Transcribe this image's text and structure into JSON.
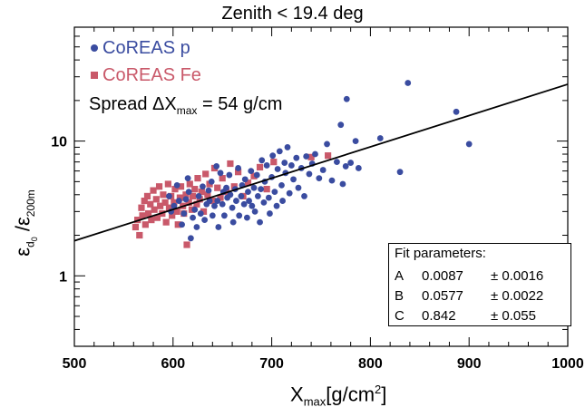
{
  "chart_data": {
    "type": "scatter",
    "title": "Zenith < 19.4 deg",
    "xlabel": {
      "main": "X",
      "sub": "max",
      "unit": "[g/cm",
      "sup": "2",
      "close": "]"
    },
    "ylabel": {
      "eps1": "ε",
      "sub1": "d",
      "subsub1": "0",
      "slash": " /",
      "eps2": "ε",
      "sub2": "200m"
    },
    "xlim": [
      500,
      1000
    ],
    "ylim": [
      0.3,
      70
    ],
    "yscale": "log",
    "xticks": [
      "500",
      "600",
      "700",
      "800",
      "900",
      "1000"
    ],
    "xtick_values": [
      500,
      600,
      700,
      800,
      900,
      1000
    ],
    "yticks": [
      "1",
      "10"
    ],
    "ytick_values": [
      1,
      10
    ],
    "legend_placement": "top-left",
    "series": [
      {
        "name": "CoREAS p",
        "color": "#3a4ca0",
        "marker": "circle",
        "points": [
          [
            596,
            3.9
          ],
          [
            598,
            3.0
          ],
          [
            601,
            3.3
          ],
          [
            604,
            4.7
          ],
          [
            606,
            3.6
          ],
          [
            609,
            2.4
          ],
          [
            611,
            2.9
          ],
          [
            613,
            3.7
          ],
          [
            615,
            5.3
          ],
          [
            616,
            4.2
          ],
          [
            618,
            1.9
          ],
          [
            620,
            2.7
          ],
          [
            622,
            3.1
          ],
          [
            624,
            2.3
          ],
          [
            626,
            3.9
          ],
          [
            628,
            2.9
          ],
          [
            630,
            4.6
          ],
          [
            632,
            2.6
          ],
          [
            634,
            3.4
          ],
          [
            636,
            4.3
          ],
          [
            637,
            3.6
          ],
          [
            639,
            5.0
          ],
          [
            640,
            2.8
          ],
          [
            642,
            3.3
          ],
          [
            644,
            6.5
          ],
          [
            645,
            3.6
          ],
          [
            646,
            2.3
          ],
          [
            648,
            5.8
          ],
          [
            650,
            3.4
          ],
          [
            651,
            4.2
          ],
          [
            652,
            2.8
          ],
          [
            654,
            4.5
          ],
          [
            655,
            3.8
          ],
          [
            657,
            5.6
          ],
          [
            658,
            4.0
          ],
          [
            660,
            3.2
          ],
          [
            661,
            2.5
          ],
          [
            663,
            4.4
          ],
          [
            664,
            3.6
          ],
          [
            666,
            6.3
          ],
          [
            667,
            2.8
          ],
          [
            669,
            3.9
          ],
          [
            670,
            4.7
          ],
          [
            672,
            3.4
          ],
          [
            673,
            5.2
          ],
          [
            675,
            2.7
          ],
          [
            676,
            4.2
          ],
          [
            677,
            3.6
          ],
          [
            679,
            6.0
          ],
          [
            680,
            3.3
          ],
          [
            682,
            4.5
          ],
          [
            683,
            3.0
          ],
          [
            685,
            5.6
          ],
          [
            686,
            3.9
          ],
          [
            688,
            2.5
          ],
          [
            689,
            4.4
          ],
          [
            690,
            7.2
          ],
          [
            692,
            3.5
          ],
          [
            693,
            5.0
          ],
          [
            695,
            6.6
          ],
          [
            697,
            3.8
          ],
          [
            698,
            2.9
          ],
          [
            700,
            5.4
          ],
          [
            701,
            7.8
          ],
          [
            703,
            4.2
          ],
          [
            705,
            3.3
          ],
          [
            706,
            6.2
          ],
          [
            708,
            8.4
          ],
          [
            710,
            4.7
          ],
          [
            711,
            3.6
          ],
          [
            713,
            6.9
          ],
          [
            714,
            5.8
          ],
          [
            716,
            9.0
          ],
          [
            718,
            4.1
          ],
          [
            720,
            6.6
          ],
          [
            722,
            5.2
          ],
          [
            725,
            7.5
          ],
          [
            727,
            4.5
          ],
          [
            730,
            6.3
          ],
          [
            733,
            3.9
          ],
          [
            735,
            7.7
          ],
          [
            738,
            5.7
          ],
          [
            741,
            6.8
          ],
          [
            744,
            8.0
          ],
          [
            748,
            5.3
          ],
          [
            752,
            6.1
          ],
          [
            756,
            9.5
          ],
          [
            761,
            5.1
          ],
          [
            766,
            7.0
          ],
          [
            770,
            13.2
          ],
          [
            772,
            4.8
          ],
          [
            775,
            6.5
          ],
          [
            776,
            20.5
          ],
          [
            780,
            6.9
          ],
          [
            785,
            10.0
          ],
          [
            788,
            6.3
          ],
          [
            810,
            10.5
          ],
          [
            830,
            5.9
          ],
          [
            838,
            27.0
          ],
          [
            887,
            16.5
          ],
          [
            900,
            9.5
          ]
        ]
      },
      {
        "name": "CoREAS Fe",
        "color": "#c9596a",
        "marker": "square",
        "points": [
          [
            562,
            2.3
          ],
          [
            564,
            2.6
          ],
          [
            566,
            2.0
          ],
          [
            568,
            3.2
          ],
          [
            569,
            2.8
          ],
          [
            571,
            3.6
          ],
          [
            572,
            2.4
          ],
          [
            574,
            3.9
          ],
          [
            575,
            2.9
          ],
          [
            577,
            3.4
          ],
          [
            578,
            2.6
          ],
          [
            580,
            4.3
          ],
          [
            581,
            3.1
          ],
          [
            583,
            3.7
          ],
          [
            584,
            2.7
          ],
          [
            586,
            4.6
          ],
          [
            587,
            3.3
          ],
          [
            589,
            2.9
          ],
          [
            590,
            4.0
          ],
          [
            592,
            3.5
          ],
          [
            593,
            2.5
          ],
          [
            595,
            4.8
          ],
          [
            596,
            3.2
          ],
          [
            598,
            3.9
          ],
          [
            599,
            2.8
          ],
          [
            601,
            3.5
          ],
          [
            602,
            4.4
          ],
          [
            604,
            3.0
          ],
          [
            605,
            2.4
          ],
          [
            607,
            3.8
          ],
          [
            608,
            4.6
          ],
          [
            610,
            3.3
          ],
          [
            611,
            2.9
          ],
          [
            613,
            4.0
          ],
          [
            614,
            1.7
          ],
          [
            616,
            3.5
          ],
          [
            617,
            4.8
          ],
          [
            619,
            3.1
          ],
          [
            620,
            3.9
          ],
          [
            622,
            4.4
          ],
          [
            624,
            3.4
          ],
          [
            625,
            5.3
          ],
          [
            627,
            3.7
          ],
          [
            629,
            4.2
          ],
          [
            631,
            3.0
          ],
          [
            633,
            5.7
          ],
          [
            635,
            4.0
          ],
          [
            637,
            4.8
          ],
          [
            640,
            3.6
          ],
          [
            642,
            6.3
          ],
          [
            645,
            4.5
          ],
          [
            648,
            3.8
          ],
          [
            650,
            5.3
          ],
          [
            654,
            4.2
          ],
          [
            658,
            6.8
          ],
          [
            662,
            4.6
          ],
          [
            666,
            5.9
          ],
          [
            671,
            3.9
          ],
          [
            676,
            4.9
          ],
          [
            682,
            5.5
          ],
          [
            688,
            6.4
          ],
          [
            695,
            4.4
          ],
          [
            702,
            7.0
          ],
          [
            740,
            7.6
          ],
          [
            757,
            7.8
          ]
        ]
      }
    ],
    "fit_line": {
      "x": [
        500,
        1000
      ],
      "y": [
        1.82,
        26.4
      ],
      "color": "#000000"
    },
    "fit_parameters": {
      "title": "Fit parameters:",
      "rows": [
        {
          "name": "A",
          "value": "0.0087",
          "error": "± 0.0016"
        },
        {
          "name": "B",
          "value": "0.0577",
          "error": "± 0.0022"
        },
        {
          "name": "C",
          "value": "0.842",
          "error": "± 0.055"
        }
      ]
    },
    "annotation": {
      "prefix": "Spread ΔX",
      "sub": "max",
      "suffix": " = 54 g/cm"
    }
  }
}
